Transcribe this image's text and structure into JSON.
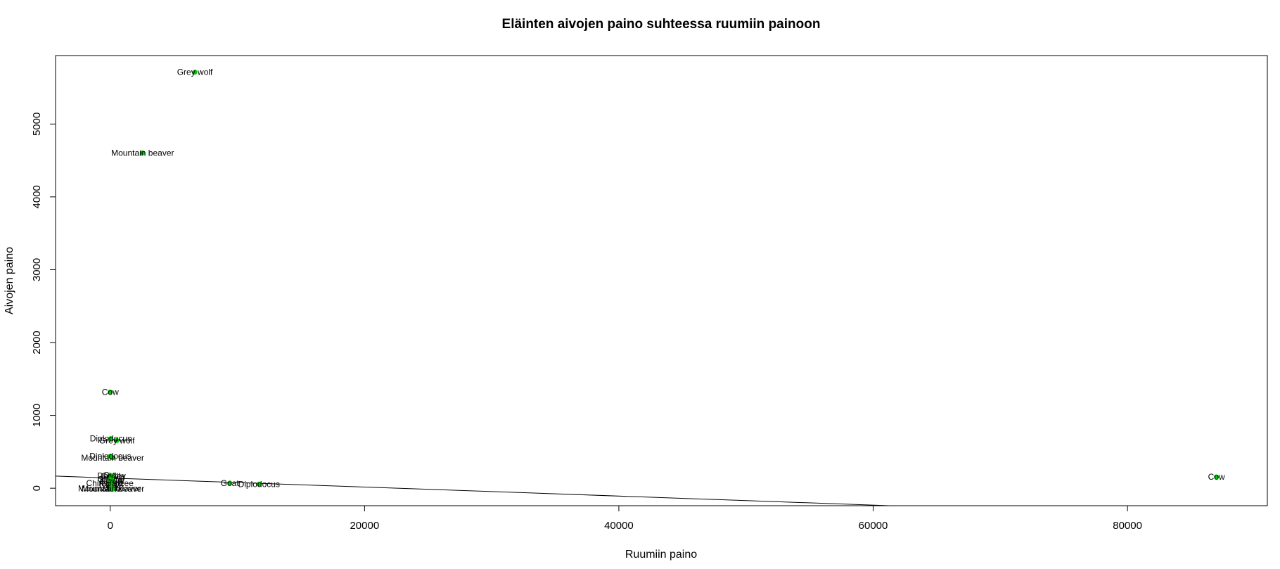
{
  "chart_data": {
    "type": "scatter",
    "title": "Eläinten aivojen paino suhteessa ruumiin painoon",
    "xlabel": "Ruumiin paino",
    "ylabel": "Aivojen paino",
    "xlim": [
      -4300,
      91000
    ],
    "ylim": [
      -240,
      5940
    ],
    "xticks": [
      0,
      20000,
      40000,
      60000,
      80000
    ],
    "yticks": [
      0,
      1000,
      2000,
      3000,
      4000,
      5000
    ],
    "grid": false,
    "point_color": "#00cc00",
    "series": [
      {
        "points": [
          {
            "x": 6654,
            "y": 5712,
            "label": "Grey wolf"
          },
          {
            "x": 2547,
            "y": 4603,
            "label": "Mountain beaver"
          },
          {
            "x": 0,
            "y": 1320,
            "label": "Cow"
          },
          {
            "x": 521,
            "y": 655,
            "label": "Grey wolf"
          },
          {
            "x": 187,
            "y": 419,
            "label": "Mountain beaver"
          },
          {
            "x": 35,
            "y": 680,
            "label": "Diplodocus"
          },
          {
            "x": 10,
            "y": 440,
            "label": "Diplodocus"
          },
          {
            "x": -40,
            "y": 180,
            "label": "Cat"
          },
          {
            "x": 100,
            "y": 170,
            "label": "Donkey"
          },
          {
            "x": 200,
            "y": 165,
            "label": "Gorilla"
          },
          {
            "x": -20,
            "y": 120,
            "label": "Giraffe"
          },
          {
            "x": 60,
            "y": 110,
            "label": "Horse"
          },
          {
            "x": 150,
            "y": 100,
            "label": "Jaguar"
          },
          {
            "x": -30,
            "y": 70,
            "label": "Chimpanzee"
          },
          {
            "x": 80,
            "y": 60,
            "label": "Rabbit"
          },
          {
            "x": 120,
            "y": 40,
            "label": "Pig"
          },
          {
            "x": -60,
            "y": -5,
            "label": "Mountain beaver"
          },
          {
            "x": 110,
            "y": -10,
            "label": "Mole"
          },
          {
            "x": 210,
            "y": -10,
            "label": "Mountain beaver"
          },
          {
            "x": 9400,
            "y": 70,
            "label": "Goat"
          },
          {
            "x": 11700,
            "y": 56,
            "label": "Diplodocus"
          },
          {
            "x": 87000,
            "y": 154,
            "label": "Cow"
          }
        ]
      }
    ],
    "regression_line": {
      "intercept": 140,
      "slope": -0.0062
    }
  }
}
